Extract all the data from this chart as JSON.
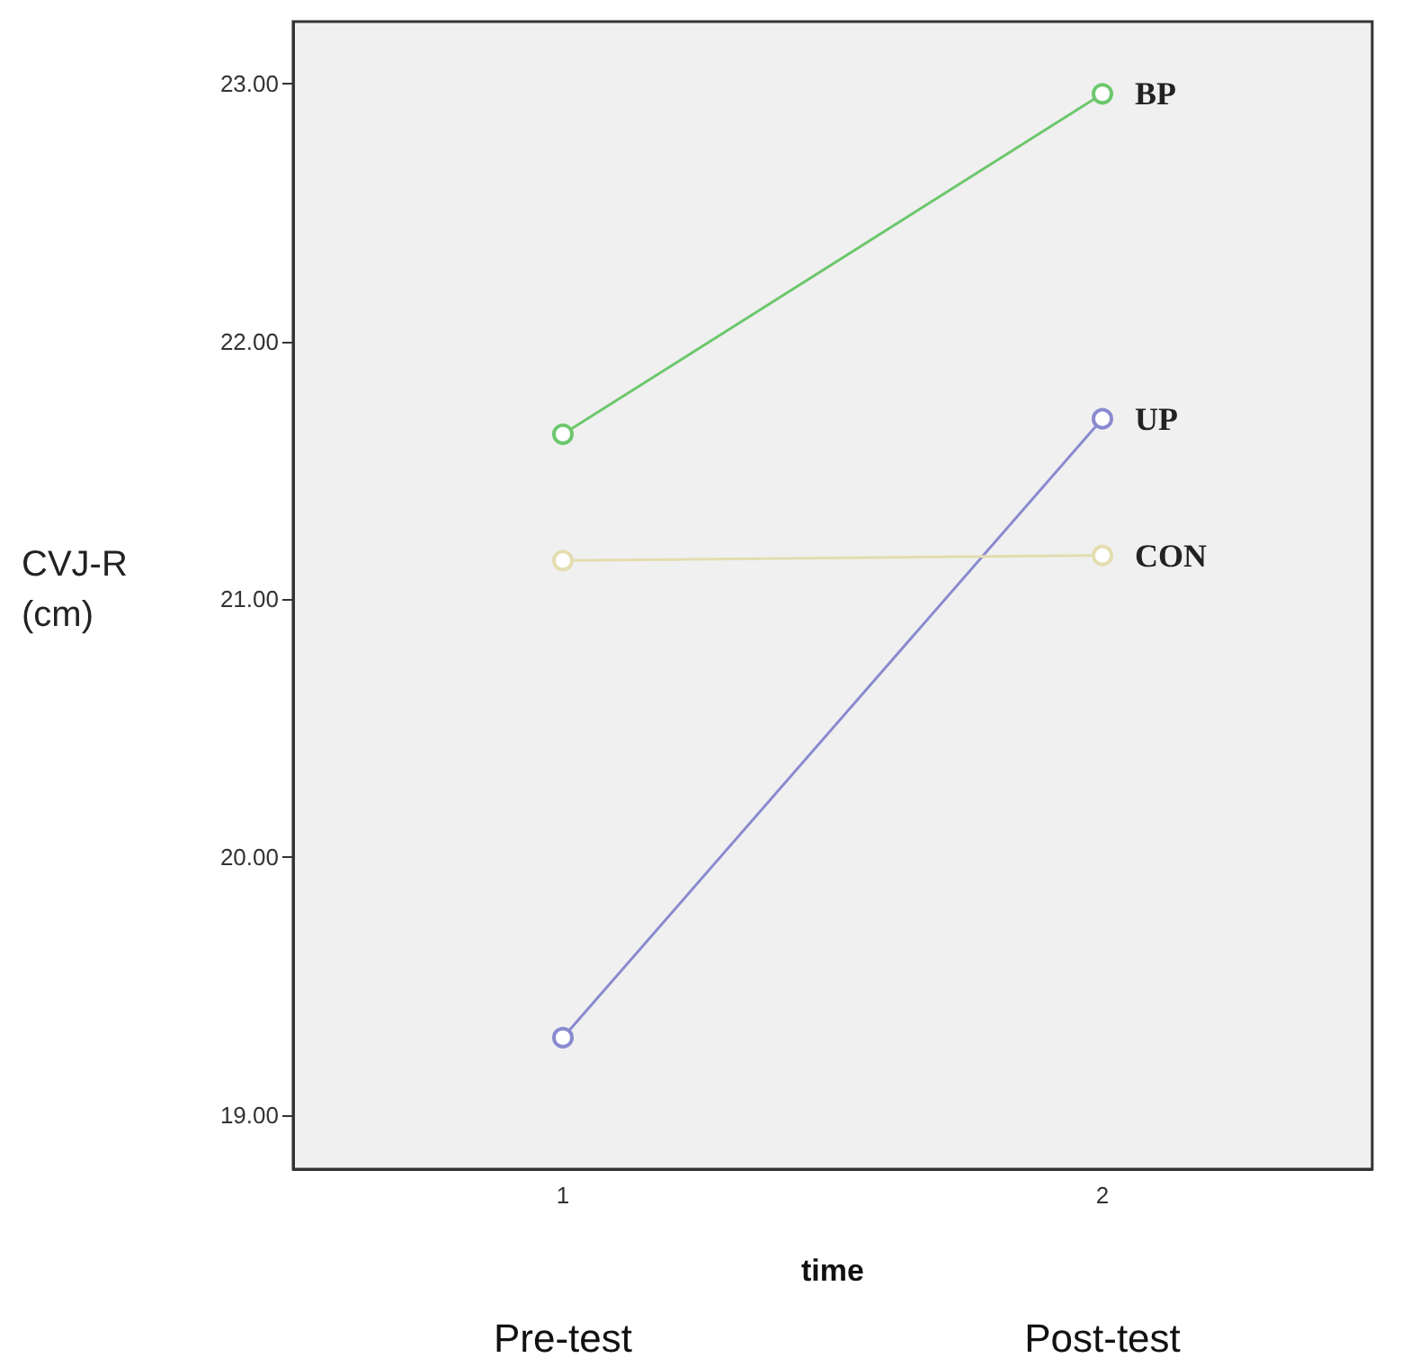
{
  "chart_data": {
    "type": "line",
    "xlabel": "time",
    "ylabel": "CVJ-R\n(cm)",
    "categories": [
      "1",
      "2"
    ],
    "annotations": [
      "Pre-test",
      "Post-test"
    ],
    "series": [
      {
        "name": "BP",
        "color": "#6cc76c",
        "values": [
          21.64,
          22.96
        ]
      },
      {
        "name": "UP",
        "color": "#8a8ad0",
        "values": [
          19.3,
          21.7
        ]
      },
      {
        "name": "CON",
        "color": "#e3ddb0",
        "values": [
          21.15,
          21.17
        ]
      }
    ],
    "ylim": [
      18.79,
      23.24
    ],
    "yticks": [
      {
        "value": 19,
        "label": "19.00"
      },
      {
        "value": 20,
        "label": "20.00"
      },
      {
        "value": 21,
        "label": "21.00"
      },
      {
        "value": 22,
        "label": "22.00"
      },
      {
        "value": 23,
        "label": "23.00"
      }
    ],
    "grid": false,
    "legend": false,
    "marker": "circle",
    "line_style": "solid"
  }
}
